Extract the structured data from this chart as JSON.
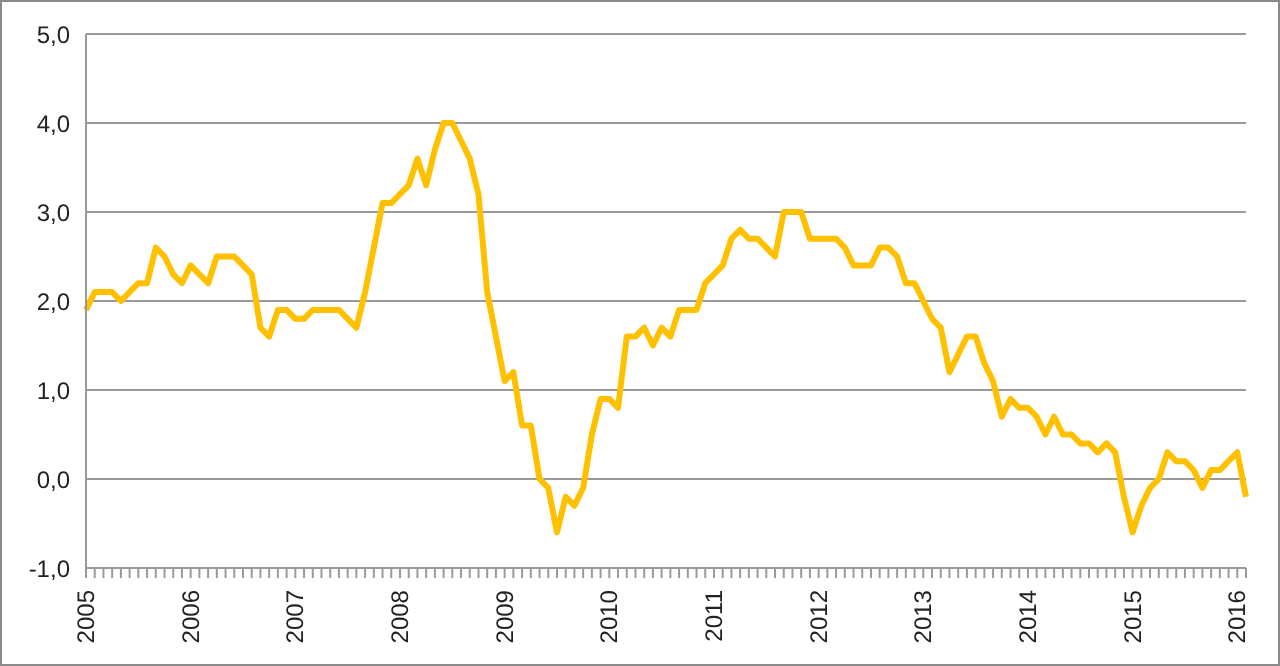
{
  "chart_data": {
    "type": "line",
    "categories": [
      "2005",
      null,
      null,
      null,
      null,
      null,
      null,
      null,
      null,
      null,
      null,
      null,
      "2006",
      null,
      null,
      null,
      null,
      null,
      null,
      null,
      null,
      null,
      null,
      null,
      "2007",
      null,
      null,
      null,
      null,
      null,
      null,
      null,
      null,
      null,
      null,
      null,
      "2008",
      null,
      null,
      null,
      null,
      null,
      null,
      null,
      null,
      null,
      null,
      null,
      "2009",
      null,
      null,
      null,
      null,
      null,
      null,
      null,
      null,
      null,
      null,
      null,
      "2010",
      null,
      null,
      null,
      null,
      null,
      null,
      null,
      null,
      null,
      null,
      null,
      "2011",
      null,
      null,
      null,
      null,
      null,
      null,
      null,
      null,
      null,
      null,
      null,
      "2012",
      null,
      null,
      null,
      null,
      null,
      null,
      null,
      null,
      null,
      null,
      null,
      "2013",
      null,
      null,
      null,
      null,
      null,
      null,
      null,
      null,
      null,
      null,
      null,
      "2014",
      null,
      null,
      null,
      null,
      null,
      null,
      null,
      null,
      null,
      null,
      null,
      "2015",
      null,
      null,
      null,
      null,
      null,
      null,
      null,
      null,
      null,
      null,
      null,
      "2016",
      null
    ],
    "series": [
      {
        "color": "#ffc000",
        "values": [
          1.9,
          2.1,
          2.1,
          2.1,
          2.0,
          2.1,
          2.2,
          2.2,
          2.6,
          2.5,
          2.3,
          2.2,
          2.4,
          2.3,
          2.2,
          2.5,
          2.5,
          2.5,
          2.4,
          2.3,
          1.7,
          1.6,
          1.9,
          1.9,
          1.8,
          1.8,
          1.9,
          1.9,
          1.9,
          1.9,
          1.8,
          1.7,
          2.1,
          2.6,
          3.1,
          3.1,
          3.2,
          3.3,
          3.6,
          3.3,
          3.7,
          4.0,
          4.0,
          3.8,
          3.6,
          3.2,
          2.1,
          1.6,
          1.1,
          1.2,
          0.6,
          0.6,
          0.0,
          -0.1,
          -0.6,
          -0.2,
          -0.3,
          -0.1,
          0.5,
          0.9,
          0.9,
          0.8,
          1.6,
          1.6,
          1.7,
          1.5,
          1.7,
          1.6,
          1.9,
          1.9,
          1.9,
          2.2,
          2.3,
          2.4,
          2.7,
          2.8,
          2.7,
          2.7,
          2.6,
          2.5,
          3.0,
          3.0,
          3.0,
          2.7,
          2.7,
          2.7,
          2.7,
          2.6,
          2.4,
          2.4,
          2.4,
          2.6,
          2.6,
          2.5,
          2.2,
          2.2,
          2.0,
          1.8,
          1.7,
          1.2,
          1.4,
          1.6,
          1.6,
          1.3,
          1.1,
          0.7,
          0.9,
          0.8,
          0.8,
          0.7,
          0.5,
          0.7,
          0.5,
          0.5,
          0.4,
          0.4,
          0.3,
          0.4,
          0.3,
          -0.2,
          -0.6,
          -0.3,
          -0.1,
          0.0,
          0.3,
          0.2,
          0.2,
          0.1,
          -0.1,
          0.1,
          0.1,
          0.2,
          0.3,
          -0.2
        ]
      }
    ],
    "ylim": [
      -1,
      5
    ],
    "yticks": [
      {
        "value": -1,
        "label": "-1,0"
      },
      {
        "value": 0,
        "label": "0,0"
      },
      {
        "value": 1,
        "label": "1,0"
      },
      {
        "value": 2,
        "label": "2,0"
      },
      {
        "value": 3,
        "label": "3,0"
      },
      {
        "value": 4,
        "label": "4,0"
      },
      {
        "value": 5,
        "label": "5,0"
      }
    ],
    "grid": "y",
    "legend": false,
    "marker": "none",
    "line_style": "solid"
  }
}
